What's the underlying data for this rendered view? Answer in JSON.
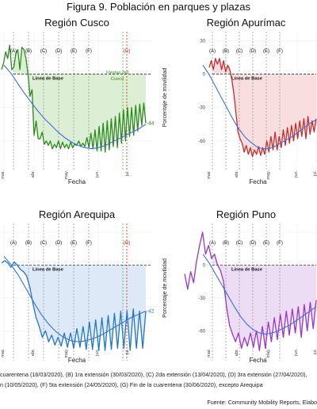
{
  "figure_title": "Figura 9. Población en parques y plazas",
  "footnote_lines": [
    "cuarentena (16/03/2020), (B) 1ra extensión (30/03/2020), (C) 2da extensión (13/04/2020), (D) 3ra extensión (27/04/2020),",
    "n (10/05/2020), (F) 5ta extensión (24/05/2020), (G) Fin de la cuarentena (30/06/2020), excepto Arequipa"
  ],
  "source": "Fuente: Community Mobility Reports, Elabo",
  "colors": {
    "trend": "#3b6fe0",
    "baseline_dash": "#333333",
    "event_dash": "#999999",
    "end_dash": "#dd2222"
  },
  "chart_data": [
    {
      "type": "line",
      "title": "Región Cusco",
      "xlabel": "Fecha",
      "ylabel": "",
      "ylim": [
        -80,
        38
      ],
      "yticks": [],
      "x_tick_labels": [
        "mar.",
        "abr.",
        "may.",
        "jun.",
        "jul."
      ],
      "series_color": "#2a8a1c",
      "fill_color": "#dcefd4",
      "events": [
        "(A)",
        "(B)",
        "(C)",
        "(D)",
        "(E)",
        "(F)",
        "(G)"
      ],
      "baseline_label": "Línea de Base",
      "end_value_label": "-44",
      "annotation": "Fiestas del Cusco",
      "series": [
        {
          "name": "",
          "values": [
            4,
            10,
            20,
            14,
            26,
            4,
            6,
            18,
            22,
            4,
            24,
            22,
            14,
            0,
            -20,
            -14,
            -55,
            -42,
            -58,
            -58,
            -52,
            -63,
            -60,
            -64,
            -60,
            -67,
            -63,
            -66,
            -60,
            -67,
            -61,
            -66,
            -63,
            -67,
            -61,
            -66,
            -63,
            -64,
            -60,
            -65,
            -62,
            -65,
            -57,
            -66,
            -53,
            -67,
            -50,
            -69,
            -47,
            -69,
            -44,
            -70,
            -42,
            -68,
            -40,
            -65,
            -38,
            -66,
            -35,
            -62,
            -32,
            -60,
            -30,
            -56,
            -30,
            -55,
            -28,
            -51,
            -27,
            -46,
            -26,
            -44
          ]
        },
        {
          "name": "",
          "values": [
            8,
            1,
            -8,
            -17,
            -25,
            -33,
            -40,
            -46,
            -52,
            -57,
            -61,
            -64,
            -66,
            -67,
            -66,
            -64,
            -61,
            -58,
            -55,
            -52,
            -49,
            -45
          ]
        }
      ]
    },
    {
      "type": "line",
      "title": "Región Apurímac",
      "xlabel": "Fecha",
      "ylabel": "Porcentaje de movilidad",
      "ylim": [
        -80,
        38
      ],
      "yticks": [
        30,
        0,
        -30,
        -60
      ],
      "x_tick_labels": [
        "mar.",
        "abr.",
        "may.",
        "jun.",
        "jul."
      ],
      "series_color": "#cc2a2a",
      "fill_color": "#f8dede",
      "events": [
        "(A)",
        "(B)",
        "(C)",
        "(D)",
        "(E)",
        "(F)"
      ],
      "baseline_label": "Línea de Base",
      "end_value_label": "",
      "annotation": "",
      "series": [
        {
          "name": "",
          "values": [
            6,
            12,
            4,
            14,
            9,
            14,
            4,
            12,
            2,
            8,
            4,
            -5,
            -18,
            -35,
            -52,
            -58,
            -62,
            -70,
            -64,
            -72,
            -66,
            -74,
            -68,
            -72,
            -65,
            -73,
            -66,
            -72,
            -60,
            -70,
            -56,
            -68,
            -52,
            -68,
            -56,
            -66,
            -50,
            -64,
            -48,
            -62,
            -46,
            -60,
            -44,
            -58,
            -42,
            -56,
            -40,
            -58,
            -38,
            -54,
            -42,
            -52,
            -40
          ]
        },
        {
          "name": "",
          "values": [
            8,
            0,
            -10,
            -20,
            -30,
            -40,
            -49,
            -56,
            -61,
            -65,
            -67,
            -67,
            -65,
            -62,
            -59,
            -56,
            -52,
            -48,
            -44,
            -41
          ]
        }
      ]
    },
    {
      "type": "line",
      "title": "Región Arequipa",
      "xlabel": "Fecha",
      "ylabel": "",
      "ylim": [
        -80,
        38
      ],
      "yticks": [],
      "x_tick_labels": [
        "mar.",
        "abr.",
        "may.",
        "jun.",
        "jul."
      ],
      "series_color": "#1f77c9",
      "fill_color": "#dde9f6",
      "events": [
        "(A)",
        "(B)",
        "(C)",
        "(D)",
        "(E)",
        "(F)",
        "(G)"
      ],
      "baseline_label": "Línea de Base",
      "end_value_label": "-42",
      "annotation": "",
      "series": [
        {
          "name": "",
          "values": [
            2,
            4,
            2,
            -2,
            3,
            0,
            -4,
            -6,
            -10,
            -20,
            -35,
            -48,
            -56,
            -66,
            -60,
            -70,
            -64,
            -73,
            -66,
            -74,
            -62,
            -75,
            -62,
            -76,
            -58,
            -75,
            -56,
            -77,
            -52,
            -77,
            -50,
            -78,
            -48,
            -78,
            -46,
            -77,
            -44,
            -76,
            -42,
            -76,
            -42,
            -78,
            -40,
            -76,
            -42,
            -76,
            -42
          ]
        },
        {
          "name": "",
          "values": [
            8,
            0,
            -10,
            -22,
            -34,
            -45,
            -54,
            -61,
            -66,
            -69,
            -70,
            -69,
            -67,
            -64,
            -60,
            -56,
            -52,
            -48,
            -45,
            -42
          ]
        }
      ]
    },
    {
      "type": "line",
      "title": "Región Puno",
      "xlabel": "Fecha",
      "ylabel": "Porcentaje de movilidad",
      "ylim": [
        -80,
        38
      ],
      "yticks": [
        0,
        -30,
        -60
      ],
      "x_tick_labels": [
        "mar.",
        "abr.",
        "may.",
        "jun.",
        "jul."
      ],
      "series_color": "#9b35c8",
      "fill_color": "#ecdcf4",
      "events": [
        "(A)",
        "(B)",
        "(C)",
        "(D)",
        "(E)",
        "(F)"
      ],
      "baseline_label": "Línea de Base",
      "end_value_label": "",
      "annotation": "",
      "series": [
        {
          "name": "",
          "values": [
            -8,
            -22,
            -6,
            -16,
            4,
            18,
            30,
            10,
            18,
            6,
            10,
            0,
            -5,
            -15,
            -38,
            -55,
            -63,
            -70,
            -62,
            -76,
            -66,
            -74,
            -62,
            -75,
            -60,
            -78,
            -56,
            -76,
            -52,
            -70,
            -48,
            -68,
            -45,
            -66,
            -42,
            -64,
            -40,
            -62,
            -38,
            -66,
            -36,
            -60,
            -34,
            -58,
            -32
          ]
        },
        {
          "name": "",
          "values": [
            10,
            2,
            -8,
            -18,
            -28,
            -38,
            -47,
            -54,
            -59,
            -62,
            -63,
            -62,
            -60,
            -57,
            -54,
            -50,
            -46,
            -42,
            -38
          ]
        }
      ]
    }
  ]
}
